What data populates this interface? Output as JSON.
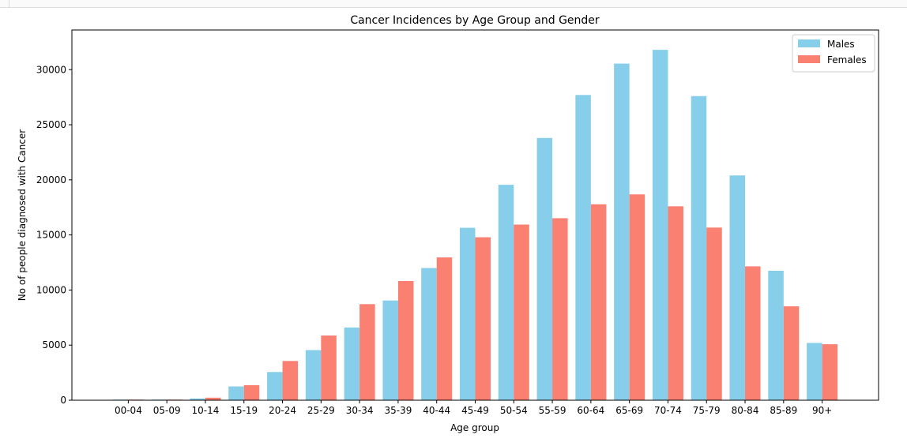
{
  "chart_data": {
    "type": "bar",
    "title": "Cancer Incidences by Age Group and Gender",
    "xlabel": "Age group",
    "ylabel": "No of people diagnosed with Cancer",
    "ylim": [
      0,
      33600
    ],
    "yticks": [
      0,
      5000,
      10000,
      15000,
      20000,
      25000,
      30000
    ],
    "ytick_labels": [
      "0",
      "5000",
      "10000",
      "15000",
      "20000",
      "25000",
      "30000"
    ],
    "grid": false,
    "legend_position": "top-right",
    "categories": [
      "00-04",
      "05-09",
      "10-14",
      "15-19",
      "20-24",
      "25-29",
      "30-34",
      "35-39",
      "40-44",
      "45-49",
      "50-54",
      "55-59",
      "60-64",
      "65-69",
      "70-74",
      "75-79",
      "80-84",
      "85-89",
      "90+"
    ],
    "series": [
      {
        "name": "Males",
        "color": "#87ceeb",
        "values": [
          60,
          60,
          160,
          1250,
          2560,
          4550,
          6600,
          9050,
          12000,
          15650,
          19550,
          23800,
          27700,
          30550,
          31800,
          27600,
          20400,
          11750,
          5200
        ]
      },
      {
        "name": "Females",
        "color": "#fa8072",
        "values": [
          60,
          60,
          230,
          1370,
          3560,
          5870,
          8720,
          10820,
          12960,
          14790,
          15940,
          16520,
          17780,
          18680,
          17600,
          15670,
          12150,
          8520,
          5080
        ]
      }
    ]
  }
}
